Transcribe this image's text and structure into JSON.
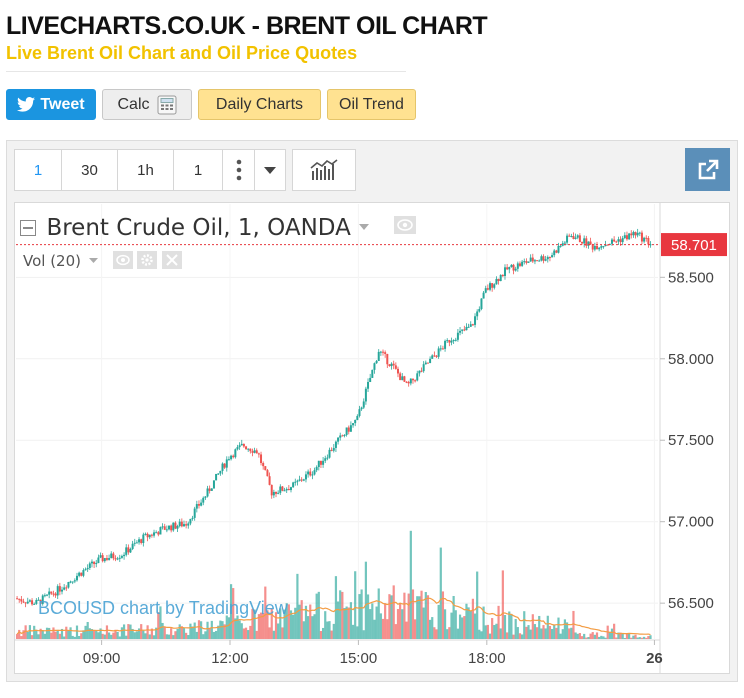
{
  "site": {
    "title": "LIVECHARTS.CO.UK - BRENT OIL CHART",
    "subtitle": "Live Brent Oil Chart and Oil Price Quotes"
  },
  "buttons": {
    "tweet": "Tweet",
    "calc": "Calc",
    "daily": "Daily Charts",
    "trend": "Oil Trend"
  },
  "toolbar": {
    "intervals": [
      "1",
      "30",
      "1h",
      "1"
    ]
  },
  "colors": {
    "up": "#26a69a",
    "down": "#ef5350",
    "price_line": "#e8373f",
    "volume_ma": "#f39c43",
    "accent": "#5b8fb9"
  },
  "chart_data": {
    "type": "candlestick",
    "symbol_label": "Brent Crude Oil, 1, OANDA",
    "volume_label": "Vol (20)",
    "watermark": "BCOUSD chart by TradingView",
    "last_price": "58.701",
    "y_ticks": [
      "58.500",
      "58.000",
      "57.500",
      "57.000",
      "56.500"
    ],
    "ylim": [
      56.28,
      58.95
    ],
    "x_ticks": [
      "09:00",
      "12:00",
      "15:00",
      "18:00",
      "26"
    ],
    "price_path": [
      {
        "t": "07:00",
        "v": 56.53
      },
      {
        "t": "07:30",
        "v": 56.5
      },
      {
        "t": "08:00",
        "v": 56.58
      },
      {
        "t": "08:30",
        "v": 56.68
      },
      {
        "t": "09:00",
        "v": 56.77
      },
      {
        "t": "09:30",
        "v": 56.8
      },
      {
        "t": "10:00",
        "v": 56.9
      },
      {
        "t": "10:30",
        "v": 56.96
      },
      {
        "t": "11:00",
        "v": 56.99
      },
      {
        "t": "11:30",
        "v": 57.18
      },
      {
        "t": "12:00",
        "v": 57.4
      },
      {
        "t": "12:20",
        "v": 57.47
      },
      {
        "t": "12:40",
        "v": 57.43
      },
      {
        "t": "13:00",
        "v": 57.18
      },
      {
        "t": "13:30",
        "v": 57.22
      },
      {
        "t": "14:00",
        "v": 57.32
      },
      {
        "t": "14:30",
        "v": 57.48
      },
      {
        "t": "15:00",
        "v": 57.63
      },
      {
        "t": "15:30",
        "v": 58.05
      },
      {
        "t": "15:50",
        "v": 57.95
      },
      {
        "t": "16:10",
        "v": 57.83
      },
      {
        "t": "16:40",
        "v": 57.98
      },
      {
        "t": "17:10",
        "v": 58.12
      },
      {
        "t": "17:40",
        "v": 58.2
      },
      {
        "t": "18:00",
        "v": 58.42
      },
      {
        "t": "18:30",
        "v": 58.55
      },
      {
        "t": "19:00",
        "v": 58.6
      },
      {
        "t": "19:30",
        "v": 58.63
      },
      {
        "t": "20:00",
        "v": 58.76
      },
      {
        "t": "20:30",
        "v": 58.69
      },
      {
        "t": "21:00",
        "v": 58.72
      },
      {
        "t": "21:30",
        "v": 58.77
      },
      {
        "t": "21:50",
        "v": 58.71
      }
    ]
  }
}
